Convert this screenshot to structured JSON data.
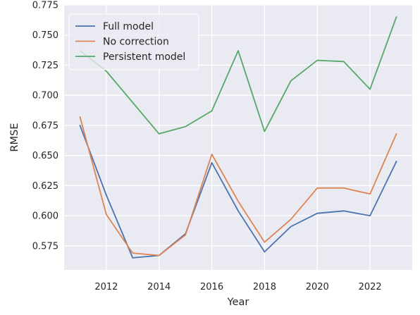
{
  "chart_data": {
    "type": "line",
    "title": "",
    "xlabel": "Year",
    "ylabel": "RMSE",
    "x": [
      2011,
      2012,
      2013,
      2014,
      2015,
      2016,
      2017,
      2018,
      2019,
      2020,
      2021,
      2022,
      2023
    ],
    "xlim": [
      2010.4,
      2023.6
    ],
    "ylim": [
      0.555,
      0.775
    ],
    "xticks": [
      2012,
      2014,
      2016,
      2018,
      2020,
      2022
    ],
    "xtick_labels": [
      "2012",
      "2014",
      "2016",
      "2018",
      "2020",
      "2022"
    ],
    "yticks": [
      0.575,
      0.6,
      0.625,
      0.65,
      0.675,
      0.7,
      0.725,
      0.75,
      0.775
    ],
    "ytick_labels": [
      "0.575",
      "0.600",
      "0.625",
      "0.650",
      "0.675",
      "0.700",
      "0.725",
      "0.750",
      "0.775"
    ],
    "grid": true,
    "legend_position": "top-left",
    "background": "#eaeaf2",
    "series": [
      {
        "name": "Full model",
        "color": "#4c72b0",
        "values": [
          0.675,
          0.617,
          0.565,
          0.567,
          0.585,
          0.644,
          0.604,
          0.57,
          0.591,
          0.602,
          0.604,
          0.6,
          0.645
        ]
      },
      {
        "name": "No correction",
        "color": "#dd8452",
        "values": [
          0.682,
          0.601,
          0.569,
          0.567,
          0.584,
          0.651,
          0.612,
          0.578,
          0.597,
          0.623,
          0.623,
          0.618,
          0.668
        ]
      },
      {
        "name": "Persistent model",
        "color": "#55a868",
        "values": [
          0.737,
          0.72,
          0.694,
          0.668,
          0.674,
          0.687,
          0.737,
          0.67,
          0.712,
          0.729,
          0.728,
          0.705,
          0.765
        ]
      }
    ]
  }
}
